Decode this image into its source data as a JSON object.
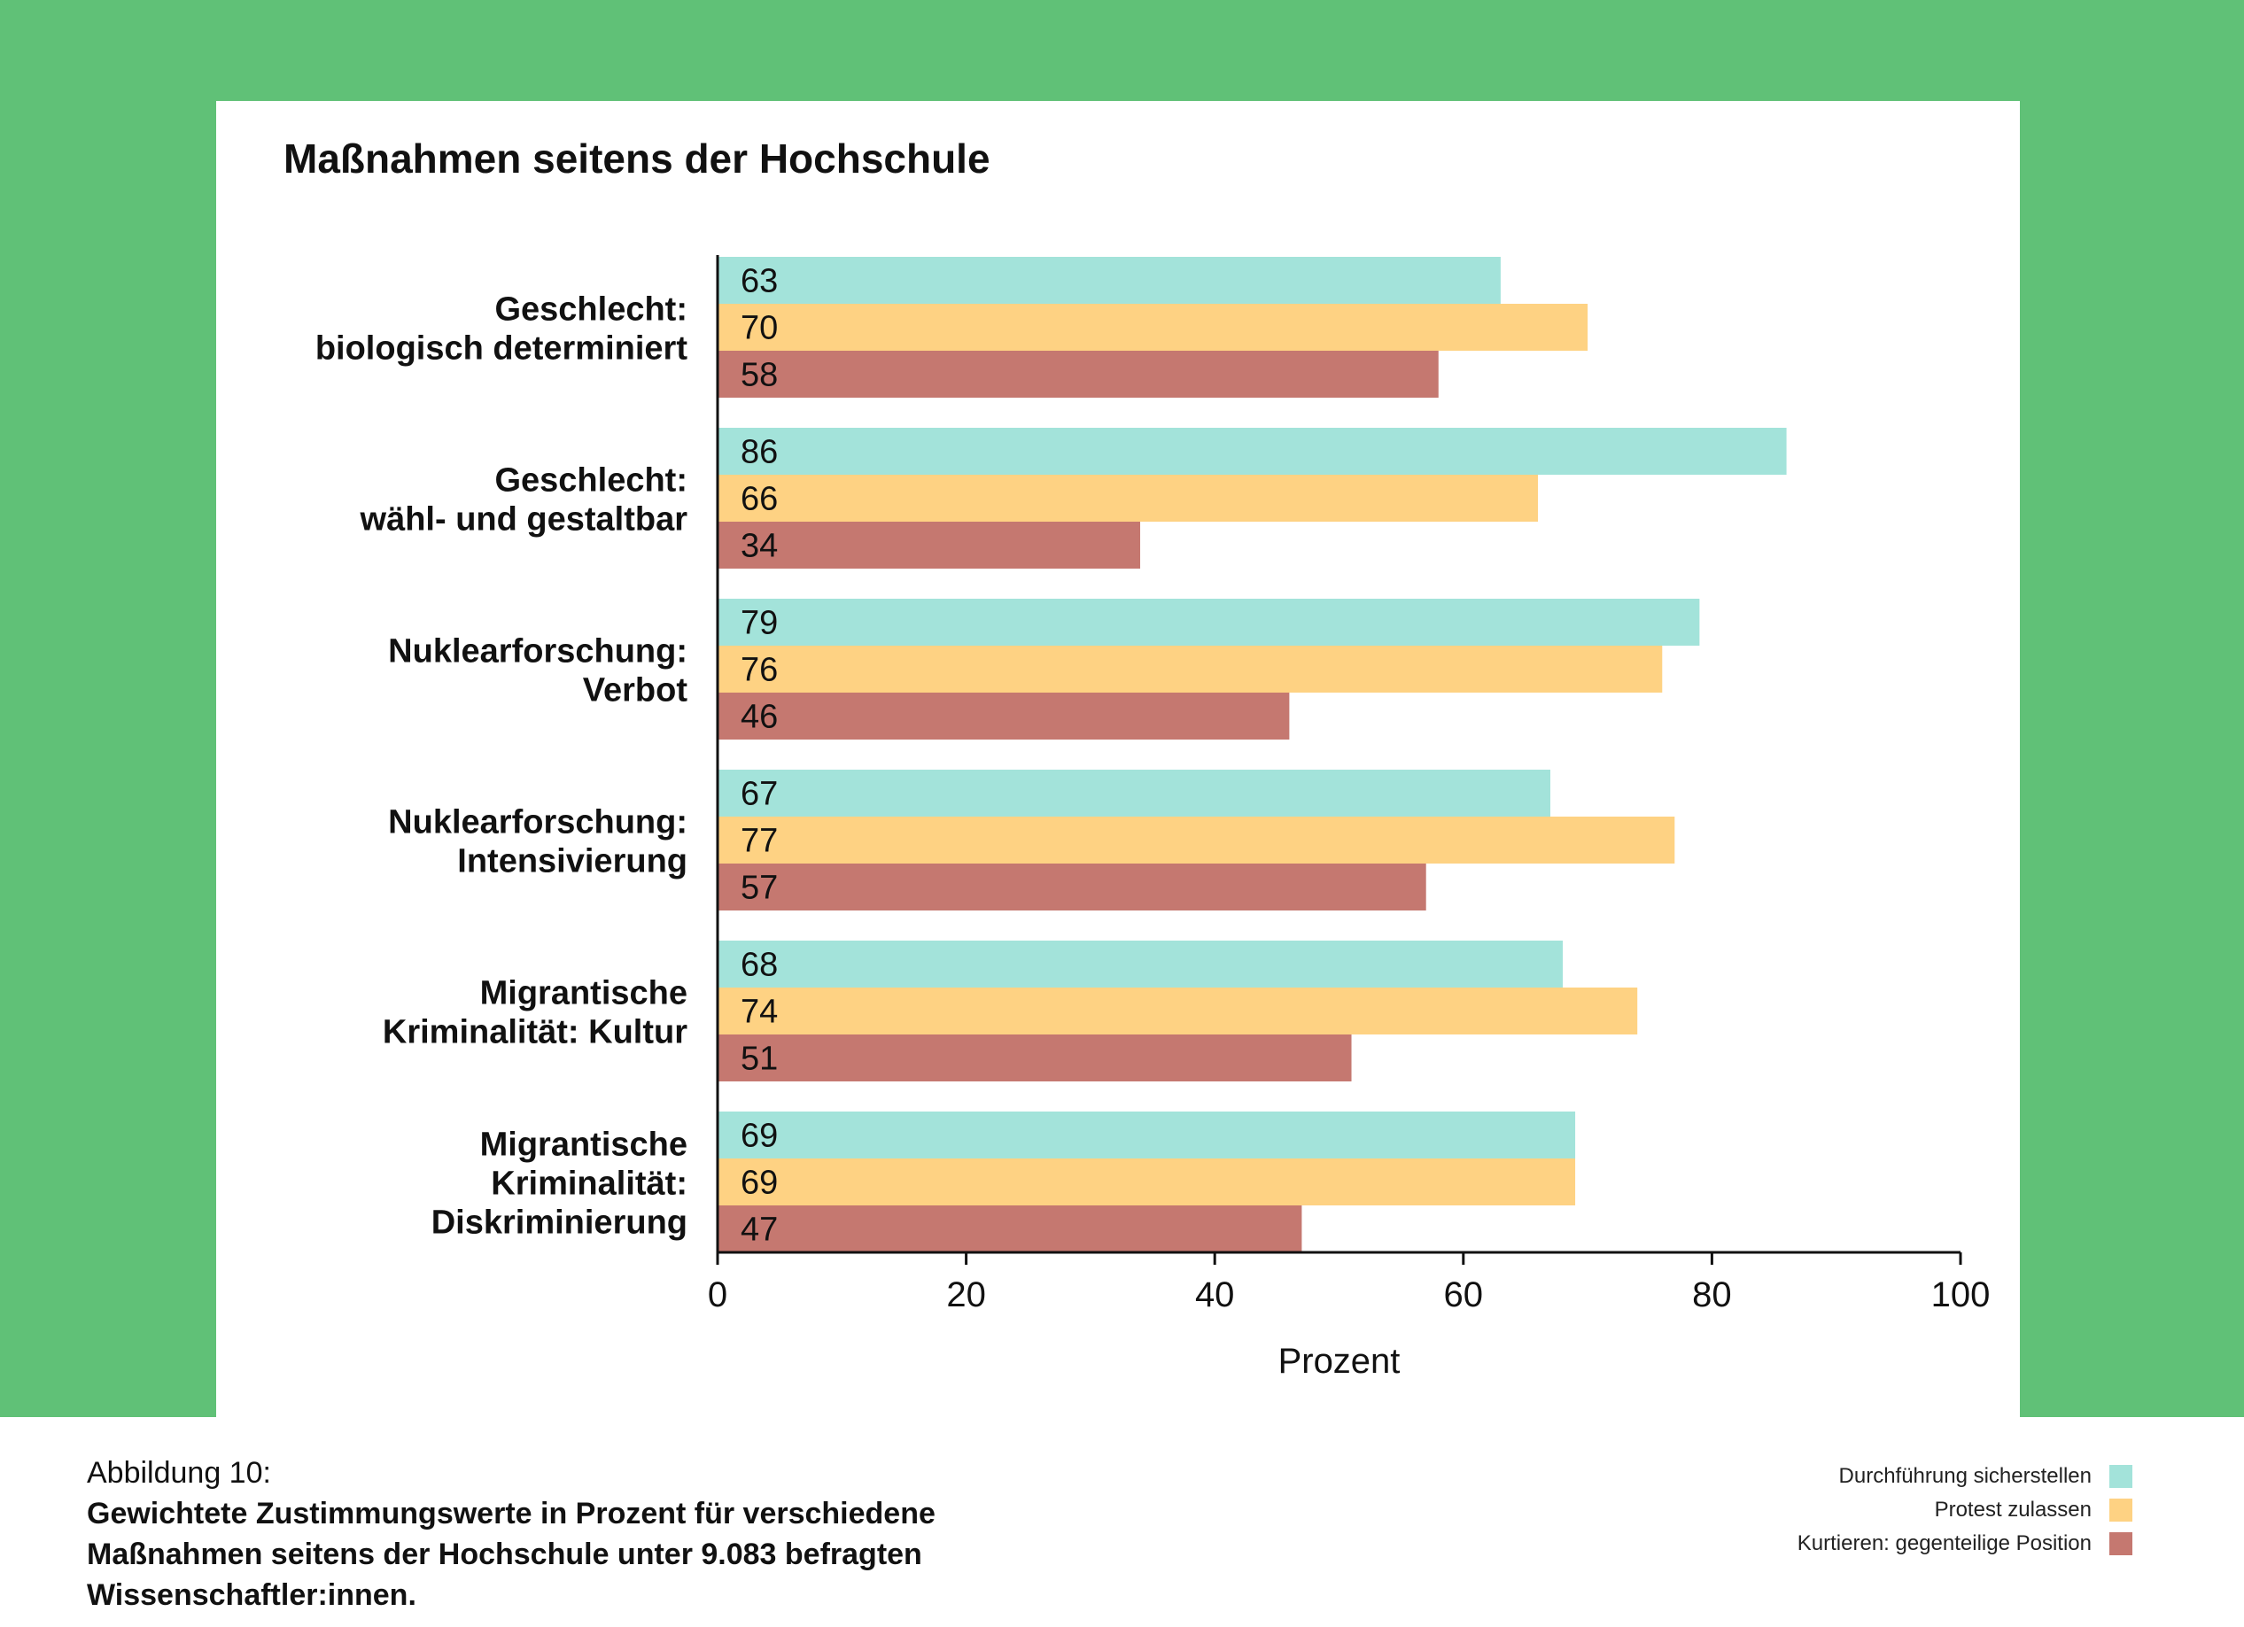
{
  "chart_data": {
    "type": "bar",
    "orientation": "horizontal",
    "title": "Maßnahmen seitens der Hochschule",
    "xlabel": "Prozent",
    "xlim": [
      0,
      100
    ],
    "xticks": [
      0,
      20,
      40,
      60,
      80,
      100
    ],
    "categories": [
      [
        "Geschlecht:",
        "biologisch determiniert"
      ],
      [
        "Geschlecht:",
        "wähl- und gestaltbar"
      ],
      [
        "Nuklearforschung:",
        "Verbot"
      ],
      [
        "Nuklearforschung:",
        "Intensivierung"
      ],
      [
        "Migrantische",
        "Kriminalität: Kultur"
      ],
      [
        "Migrantische",
        "Kriminalität:",
        "Diskriminierung"
      ]
    ],
    "series": [
      {
        "name": "Durchführung sicherstellen",
        "color": "#a3e3da",
        "values": [
          63,
          86,
          79,
          67,
          68,
          69
        ]
      },
      {
        "name": "Protest zulassen",
        "color": "#fed283",
        "values": [
          70,
          66,
          76,
          77,
          74,
          69
        ]
      },
      {
        "name": "Kurtieren: gegenteilige Position",
        "color": "#c57870",
        "values": [
          58,
          34,
          46,
          57,
          51,
          47
        ]
      }
    ],
    "legend_position": "bottom-right",
    "grid": false
  },
  "caption": {
    "label": "Abbildung 10:",
    "text": "Gewichtete Zustimmungswerte in Prozent für verschiedene Maßnahmen seitens der Hochschule unter 9.083 befragten Wissenschaftler:innen."
  },
  "colors": {
    "background": "#60c177",
    "card": "#ffffff"
  }
}
